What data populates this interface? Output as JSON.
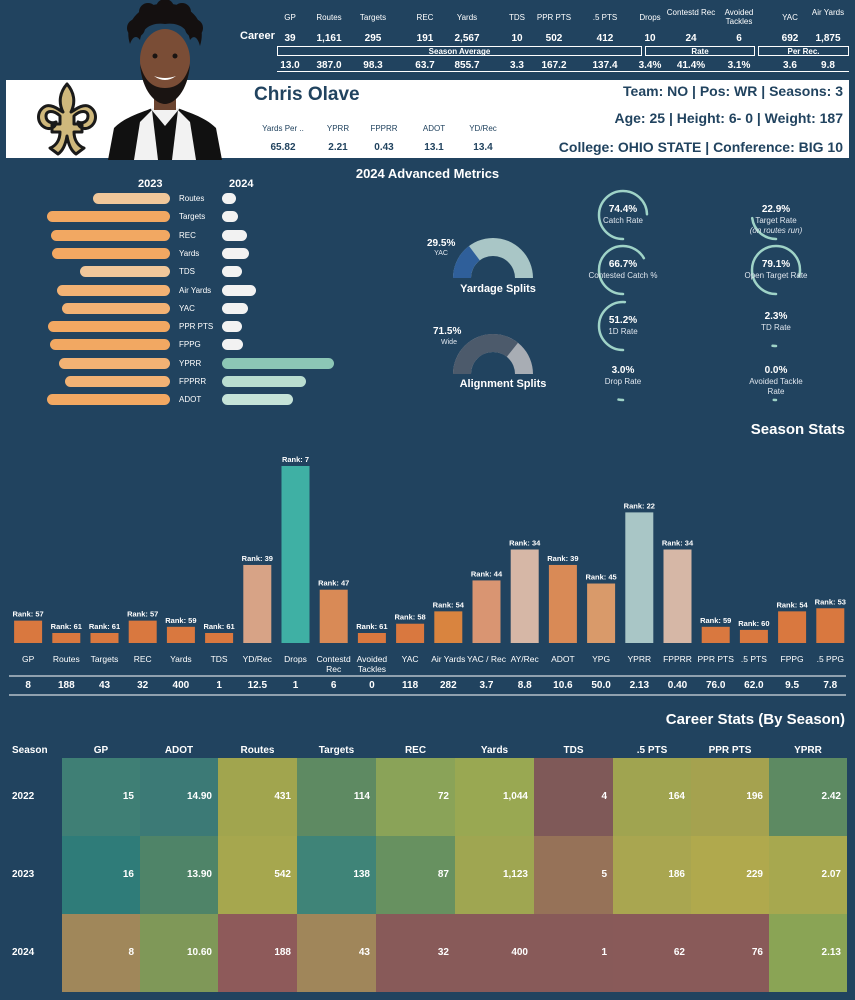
{
  "player": {
    "name": "Chris Olave",
    "team_line": "Team: NO  | Pos: WR | Seasons: 3",
    "age_line": "Age: 25 | Height: 6- 0 | Weight: 187",
    "college_line": "College: OHIO STATE  | Conference: BIG 10"
  },
  "career": {
    "label": "Career",
    "headers": [
      "GP",
      "Routes",
      "Targets",
      "REC",
      "Yards",
      "TDS",
      "PPR PTS",
      ".5 PTS",
      "Drops",
      "Contestd Rec",
      "Avoided Tackles",
      "YAC",
      "Air Yards"
    ],
    "totals": [
      "39",
      "1,161",
      "295",
      "191",
      "2,567",
      "10",
      "502",
      "412",
      "10",
      "24",
      "6",
      "692",
      "1,875"
    ],
    "averages": [
      "13.0",
      "387.0",
      "98.3",
      "63.7",
      "855.7",
      "3.3",
      "167.2",
      "137.4",
      "3.4%",
      "41.4%",
      "3.1%",
      "3.6",
      "9.8"
    ],
    "groups": [
      "Season Average",
      "Rate",
      "Per Rec."
    ]
  },
  "adv_header": {
    "headers": [
      "Yards Per ..",
      "YPRR",
      "FPPRR",
      "ADOT",
      "YD/Rec"
    ],
    "values": [
      "65.82",
      "2.21",
      "0.43",
      "13.1",
      "13.4"
    ]
  },
  "advanced": {
    "title": "2024 Advanced Metrics",
    "year_left": "2023",
    "year_right": "2024",
    "metrics": [
      {
        "label": "Routes",
        "v2023": 0.55,
        "v2024": 0.0
      },
      {
        "label": "Targets",
        "v2023": 0.88,
        "v2024": 0.14
      },
      {
        "label": "REC",
        "v2023": 0.85,
        "v2024": 0.22
      },
      {
        "label": "Yards",
        "v2023": 0.84,
        "v2024": 0.24
      },
      {
        "label": "TDS",
        "v2023": 0.64,
        "v2024": 0.18
      },
      {
        "label": "Air Yards",
        "v2023": 0.81,
        "v2024": 0.3
      },
      {
        "label": "YAC",
        "v2023": 0.77,
        "v2024": 0.23
      },
      {
        "label": "PPR PTS",
        "v2023": 0.87,
        "v2024": 0.18
      },
      {
        "label": "FPPG",
        "v2023": 0.86,
        "v2024": 0.19
      },
      {
        "label": "YPRR",
        "v2023": 0.79,
        "v2024": 1.0
      },
      {
        "label": "FPPRR",
        "v2023": 0.75,
        "v2024": 0.75
      },
      {
        "label": "ADOT",
        "v2023": 0.88,
        "v2024": 0.63
      }
    ],
    "yardage_split": {
      "value": "29.5%",
      "sub": "YAC",
      "title": "Yardage Splits",
      "fraction": 0.295
    },
    "alignment_split": {
      "value": "71.5%",
      "sub": "Wide",
      "title": "Alignment Splits",
      "fraction": 0.715
    },
    "gauges": [
      {
        "value": "74.4%",
        "label": "Catch Rate",
        "fraction": 0.744
      },
      {
        "value": "66.7%",
        "label": "Contested Catch %",
        "fraction": 0.667
      },
      {
        "value": "51.2%",
        "label": "1D Rate",
        "fraction": 0.512
      },
      {
        "value": "3.0%",
        "label": "Drop Rate",
        "fraction": 0.03
      },
      {
        "value": "22.9%",
        "label": "Target Rate",
        "sublabel": "(on routes run)",
        "fraction": 0.229
      },
      {
        "value": "79.1%",
        "label": "Open Target Rate",
        "fraction": 0.791
      },
      {
        "value": "2.3%",
        "label": "TD Rate",
        "fraction": 0.023
      },
      {
        "value": "0.0%",
        "label": "Avoided Tackle Rate",
        "fraction": 0.0
      }
    ]
  },
  "chart_data": {
    "type": "bar",
    "title": "Season Stats",
    "categories": [
      "GP",
      "Routes",
      "Targets",
      "REC",
      "Yards",
      "TDS",
      "YD/Rec",
      "Drops",
      "Contestd Rec",
      "Avoided Tackles",
      "YAC",
      "Air Yards",
      "YAC / Rec",
      "AY/Rec",
      "ADOT",
      "YPG",
      "YPRR",
      "FPPRR",
      "PPR PTS",
      ".5 PTS",
      "FPPG",
      ".5 PPG"
    ],
    "values": [
      "8",
      "188",
      "43",
      "32",
      "400",
      "1",
      "12.5",
      "1",
      "6",
      "0",
      "118",
      "282",
      "3.7",
      "8.8",
      "10.6",
      "50.0",
      "2.13",
      "0.40",
      "76.0",
      "62.0",
      "9.5",
      "7.8"
    ],
    "ranks": [
      57,
      61,
      61,
      57,
      59,
      61,
      39,
      7,
      47,
      61,
      58,
      54,
      44,
      34,
      39,
      45,
      22,
      34,
      59,
      60,
      54,
      53
    ],
    "rank_prefix": "Rank: ",
    "colors": [
      "#d9783f",
      "#d9783f",
      "#d9783f",
      "#d9783f",
      "#d9783f",
      "#d9783f",
      "#d7a386",
      "#3fb0a4",
      "#d98a56",
      "#d9783f",
      "#d9783f",
      "#d9843f",
      "#d99572",
      "#d6b7a6",
      "#d98a56",
      "#d99a6a",
      "#a9c6c6",
      "#d6b7a6",
      "#d9783f",
      "#d9783f",
      "#d9783f",
      "#d9783f"
    ]
  },
  "career_table": {
    "title": "Career Stats (By Season)",
    "row_header": "Season",
    "columns": [
      "GP",
      "ADOT",
      "Routes",
      "Targets",
      "REC",
      "Yards",
      "TDS",
      ".5 PTS",
      "PPR PTS",
      "YPRR"
    ],
    "rows": [
      {
        "season": "2022",
        "cells": [
          "15",
          "14.90",
          "431",
          "114",
          "72",
          "1,044",
          "4",
          "164",
          "196",
          "2.42"
        ],
        "colors": [
          "#3f7f75",
          "#3c7a76",
          "#a1a54e",
          "#5e8a62",
          "#8aa358",
          "#99a852",
          "#7f5958",
          "#a0a450",
          "#a5a24f",
          "#5d8a62"
        ]
      },
      {
        "season": "2023",
        "cells": [
          "16",
          "13.90",
          "542",
          "138",
          "87",
          "1,123",
          "5",
          "186",
          "229",
          "2.07"
        ],
        "colors": [
          "#2f7c79",
          "#4f8468",
          "#a6a74e",
          "#3f8478",
          "#679160",
          "#9fa651",
          "#967258",
          "#a9a650",
          "#b0a94d",
          "#a7a84f"
        ]
      },
      {
        "season": "2024",
        "cells": [
          "8",
          "10.60",
          "188",
          "43",
          "32",
          "400",
          "1",
          "62",
          "76",
          "2.13"
        ],
        "colors": [
          "#a0875a",
          "#7f9858",
          "#8e5a5a",
          "#a0865a",
          "#885a59",
          "#885a59",
          "#885a59",
          "#895a59",
          "#895a59",
          "#8aa455"
        ]
      }
    ]
  }
}
